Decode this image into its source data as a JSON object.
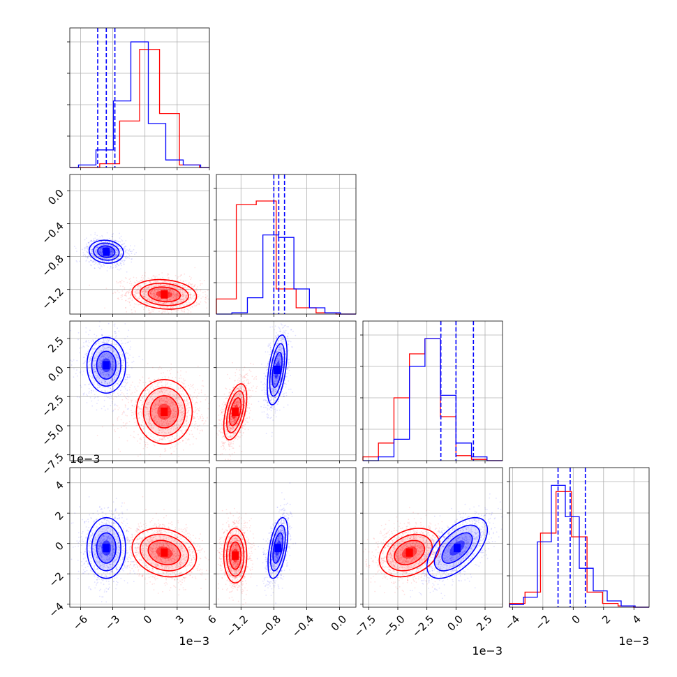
{
  "chart_data": {
    "type": "corner",
    "colors": {
      "series_a": "#0000ff",
      "series_b": "#ff0000"
    },
    "grid": true,
    "parameters": [
      {
        "range": [
          -7,
          6
        ],
        "ticks": [
          -6,
          -3,
          0,
          3,
          6
        ],
        "tick_labels": [
          "−6",
          "−3",
          "0",
          "3",
          "6"
        ],
        "offset_label": "1e−3",
        "hist_a": [
          0.0,
          0.02,
          0.02,
          0.14,
          0.14,
          0.53,
          0.53,
          1.0,
          1.0,
          0.35,
          0.35,
          0.06,
          0.06,
          0.02,
          0.02,
          0.0
        ],
        "hist_b": [
          0.0,
          0.0,
          0.0,
          0.03,
          0.03,
          0.37,
          0.37,
          0.94,
          0.94,
          0.43,
          0.43,
          0.02,
          0.02,
          0.0
        ],
        "quantiles_a": [
          -4.4,
          -3.6,
          -2.8
        ]
      },
      {
        "range": [
          -1.5,
          0.2
        ],
        "ticks": [
          -1.2,
          -0.8,
          -0.4,
          0.0
        ],
        "tick_labels": [
          "−1.2",
          "−0.8",
          "−0.4",
          "0.0"
        ],
        "offset_label": "",
        "hist_a": [
          0.0,
          0.01,
          0.13,
          0.63,
          0.61,
          0.2,
          0.05,
          0.01,
          0.0
        ],
        "hist_b": [
          0.12,
          0.87,
          0.9,
          0.2,
          0.05,
          0.01,
          0.0
        ],
        "quantiles_a": [
          -0.8,
          -0.74,
          -0.67
        ]
      },
      {
        "range": [
          -8,
          4
        ],
        "ticks": [
          -7.5,
          -5.0,
          -2.5,
          0.0,
          2.5
        ],
        "tick_labels": [
          "−7.5",
          "−5.0",
          "−2.5",
          "0.0",
          "2.5"
        ],
        "offset_label": "1e−3",
        "hist_a": [
          0.0,
          0.03,
          0.17,
          0.75,
          0.97,
          0.52,
          0.14,
          0.03,
          0.0
        ],
        "hist_b": [
          0.03,
          0.14,
          0.5,
          0.85,
          0.97,
          0.35,
          0.04,
          0.01,
          0.0
        ],
        "quantiles_a": [
          -1.3,
          0.0,
          1.5
        ]
      },
      {
        "range": [
          -4.2,
          5.0
        ],
        "ticks": [
          -4,
          -2,
          0,
          2,
          4
        ],
        "tick_labels": [
          "−4",
          "−2",
          "0",
          "2",
          "4"
        ],
        "offset_label": "1e−3",
        "hist_a": [
          0.02,
          0.08,
          0.52,
          0.97,
          0.72,
          0.31,
          0.13,
          0.05,
          0.01,
          0.0
        ],
        "hist_b": [
          0.03,
          0.12,
          0.59,
          0.92,
          0.56,
          0.12,
          0.03,
          0.01,
          0.0
        ],
        "quantiles_a": [
          -1.0,
          -0.2,
          0.8
        ]
      }
    ],
    "pairs": [
      {
        "x": 0,
        "y": 1,
        "a": {
          "mean": [
            -3.6,
            -0.74
          ],
          "sd": [
            0.8,
            0.07
          ],
          "corr": -0.1
        },
        "b": {
          "mean": [
            1.8,
            -1.26
          ],
          "sd": [
            1.5,
            0.09
          ],
          "corr": -0.15
        }
      },
      {
        "x": 0,
        "y": 2,
        "a": {
          "mean": [
            -3.6,
            0.2
          ],
          "sd": [
            0.9,
            1.2
          ],
          "corr": 0.0
        },
        "b": {
          "mean": [
            1.8,
            -3.8
          ],
          "sd": [
            1.5,
            1.2
          ],
          "corr": 0.0
        }
      },
      {
        "x": 1,
        "y": 2,
        "a": {
          "mean": [
            -0.76,
            -0.2
          ],
          "sd": [
            0.06,
            1.5
          ],
          "corr": 0.5
        },
        "b": {
          "mean": [
            -1.27,
            -3.8
          ],
          "sd": [
            0.07,
            1.2
          ],
          "corr": 0.5
        }
      },
      {
        "x": 0,
        "y": 3,
        "a": {
          "mean": [
            -3.6,
            -0.3
          ],
          "sd": [
            0.9,
            1.0
          ],
          "corr": 0.0
        },
        "b": {
          "mean": [
            1.8,
            -0.6
          ],
          "sd": [
            1.5,
            0.8
          ],
          "corr": -0.2
        }
      },
      {
        "x": 1,
        "y": 3,
        "a": {
          "mean": [
            -0.75,
            -0.3
          ],
          "sd": [
            0.06,
            1.0
          ],
          "corr": 0.5
        },
        "b": {
          "mean": [
            -1.27,
            -0.8
          ],
          "sd": [
            0.07,
            0.9
          ],
          "corr": 0.0
        }
      },
      {
        "x": 2,
        "y": 3,
        "a": {
          "mean": [
            0.1,
            -0.3
          ],
          "sd": [
            1.3,
            1.0
          ],
          "corr": 0.6
        },
        "b": {
          "mean": [
            -4.0,
            -0.6
          ],
          "sd": [
            1.3,
            0.8
          ],
          "corr": 0.3
        }
      }
    ]
  }
}
